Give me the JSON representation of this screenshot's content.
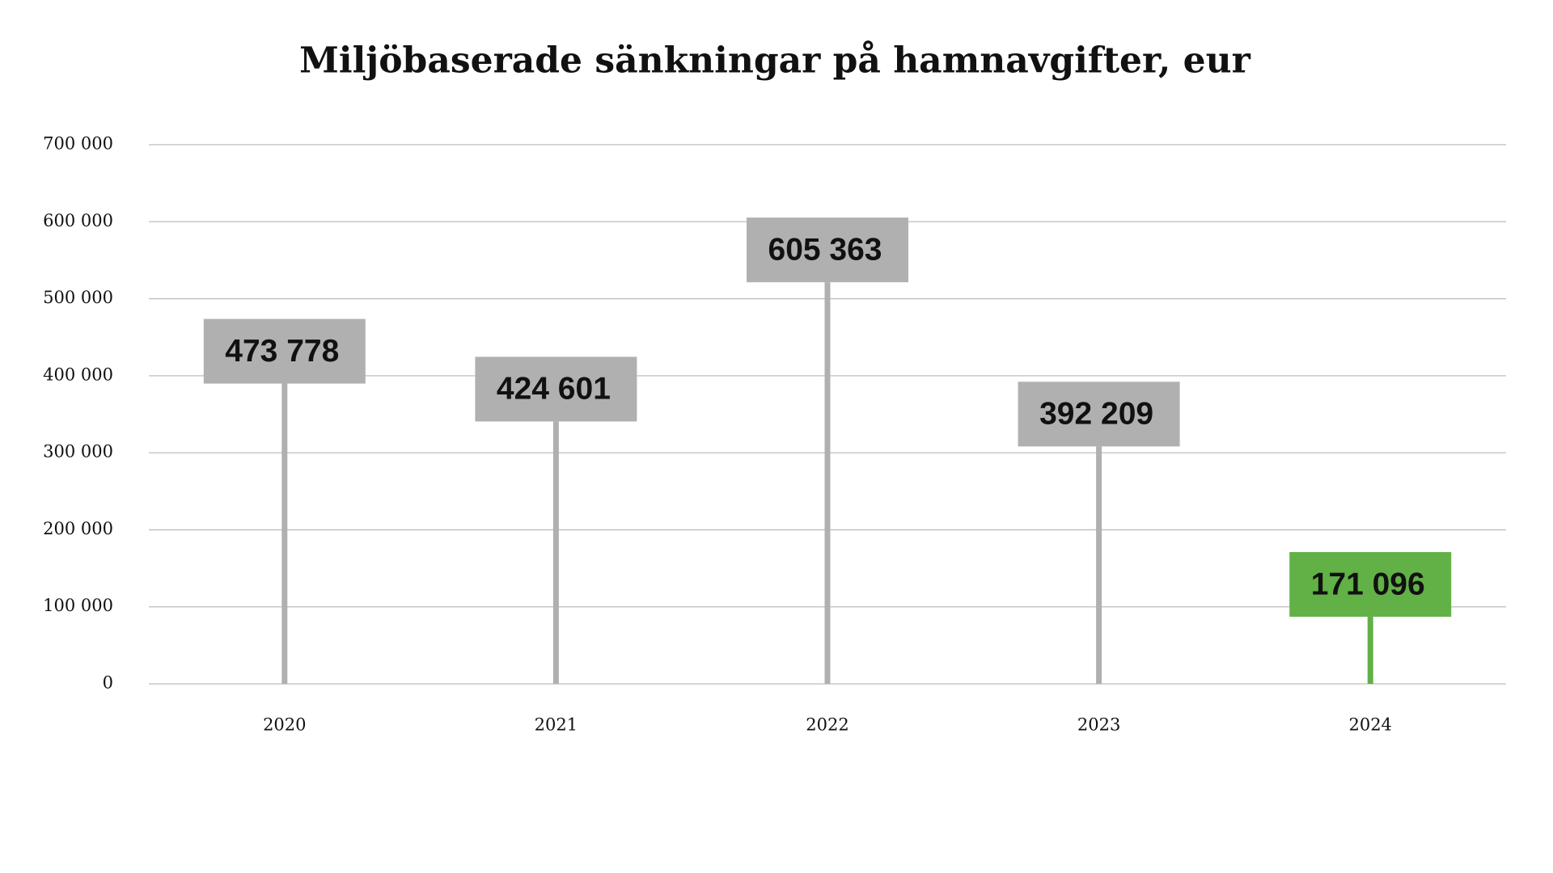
{
  "chart_data": {
    "type": "lollipop",
    "title": "Miljöbaserade sänkningar på hamnavgifter, eur",
    "categories": [
      "2020",
      "2021",
      "2022",
      "2023",
      "2024"
    ],
    "values": [
      473778,
      424601,
      605363,
      392209,
      171096
    ],
    "value_labels": [
      "473 778",
      "424 601",
      "605 363",
      "392 209",
      "171 096"
    ],
    "colors": [
      "#b0b0b0",
      "#b0b0b0",
      "#b0b0b0",
      "#b0b0b0",
      "#62b146"
    ],
    "ylim": [
      0,
      700000
    ],
    "yticks": [
      0,
      {
        "value": 100000,
        "label": "100 000"
      },
      {
        "value": 200000,
        "label": "200 000"
      },
      {
        "value": 300000,
        "label": "300 000"
      },
      {
        "value": 400000,
        "label": "400 000"
      },
      {
        "value": 500000,
        "label": "500 000"
      },
      {
        "value": 600000,
        "label": "600 000"
      },
      {
        "value": 700000,
        "label": "700 000"
      }
    ],
    "grid": true
  }
}
